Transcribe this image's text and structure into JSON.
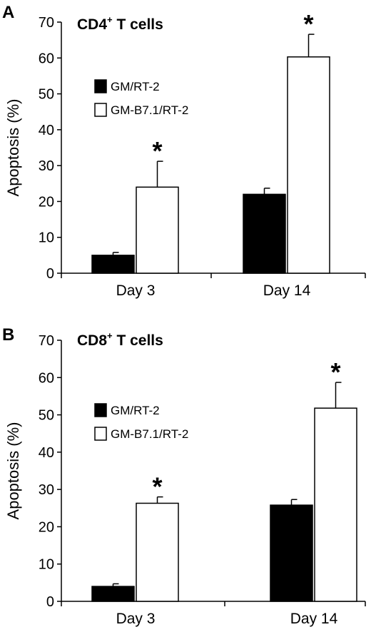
{
  "chart_data": [
    {
      "type": "bar",
      "panel_label": "A",
      "title": {
        "main": "CD4",
        "sup": "+",
        "rest": " T cells"
      },
      "ylabel": "Apoptosis (%)",
      "ylim": [
        0,
        70
      ],
      "yticks": [
        0,
        10,
        20,
        30,
        40,
        50,
        60,
        70
      ],
      "categories": [
        "Day 3",
        "Day 14"
      ],
      "series": [
        {
          "name": "GM/RT-2",
          "fill": "#000000",
          "values": [
            5,
            22
          ],
          "errors": [
            0.8,
            1.7
          ],
          "significant": [
            false,
            false
          ]
        },
        {
          "name": "GM-B7.1/RT-2",
          "fill": "#ffffff",
          "values": [
            24,
            60.3
          ],
          "errors": [
            7.2,
            6.3
          ],
          "significant": [
            true,
            true
          ]
        }
      ],
      "significance_marker": "*",
      "legend_position": "upper-left"
    },
    {
      "type": "bar",
      "panel_label": "B",
      "title": {
        "main": "CD8",
        "sup": "+",
        "rest": " T cells"
      },
      "ylabel": "Apoptosis (%)",
      "ylim": [
        0,
        70
      ],
      "yticks": [
        0,
        10,
        20,
        30,
        40,
        50,
        60,
        70
      ],
      "categories": [
        "Day 3",
        "Day 14"
      ],
      "series": [
        {
          "name": "GM/RT-2",
          "fill": "#000000",
          "values": [
            4,
            25.8
          ],
          "errors": [
            0.7,
            1.5
          ],
          "significant": [
            false,
            false
          ]
        },
        {
          "name": "GM-B7.1/RT-2",
          "fill": "#ffffff",
          "values": [
            26.3,
            51.8
          ],
          "errors": [
            1.7,
            6.9
          ],
          "significant": [
            true,
            true
          ]
        }
      ],
      "significance_marker": "*",
      "legend_position": "middle-left"
    }
  ]
}
